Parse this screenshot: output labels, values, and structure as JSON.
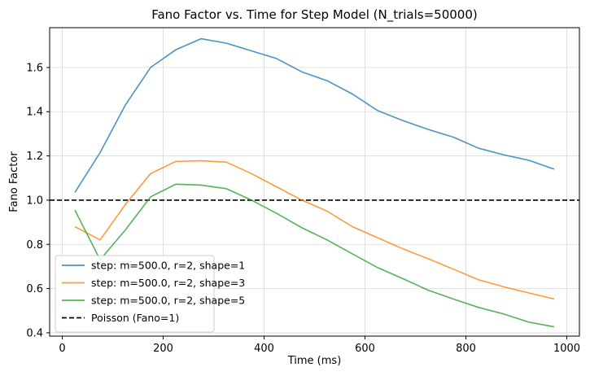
{
  "chart_data": {
    "type": "line",
    "title": "Fano Factor vs. Time for Step Model (N_trials=50000)",
    "xlabel": "Time (ms)",
    "ylabel": "Fano Factor",
    "xlim": [
      -25,
      1025
    ],
    "ylim": [
      0.385,
      1.78
    ],
    "xticks": [
      0,
      200,
      400,
      600,
      800,
      1000
    ],
    "yticks": [
      0.4,
      0.6,
      0.8,
      1.0,
      1.2,
      1.4,
      1.6
    ],
    "xtick_labels": [
      "0",
      "200",
      "400",
      "600",
      "800",
      "1000"
    ],
    "ytick_labels": [
      "0.4",
      "0.6",
      "0.8",
      "1.0",
      "1.2",
      "1.4",
      "1.6"
    ],
    "grid": true,
    "legend_position": "lower-left",
    "x": [
      25,
      75,
      125,
      175,
      225,
      275,
      325,
      375,
      425,
      475,
      525,
      575,
      625,
      675,
      725,
      775,
      825,
      875,
      925,
      975
    ],
    "series": [
      {
        "name": "step: m=500.0, r=2, shape=1",
        "color": "#1f77b4",
        "style": "solid",
        "values": [
          1.035,
          1.215,
          1.43,
          1.6,
          1.68,
          1.73,
          1.71,
          1.675,
          1.64,
          1.58,
          1.54,
          1.48,
          1.405,
          1.36,
          1.32,
          1.285,
          1.235,
          1.205,
          1.18,
          1.14
        ]
      },
      {
        "name": "step: m=500.0, r=2, shape=3",
        "color": "#ff7f0e",
        "style": "solid",
        "values": [
          0.88,
          0.82,
          0.98,
          1.12,
          1.175,
          1.178,
          1.172,
          1.12,
          1.06,
          1.0,
          0.95,
          0.88,
          0.83,
          0.78,
          0.735,
          0.688,
          0.64,
          0.608,
          0.58,
          0.553
        ]
      },
      {
        "name": "step: m=500.0, r=2, shape=5",
        "color": "#2ca02c",
        "style": "solid",
        "values": [
          0.955,
          0.73,
          0.865,
          1.015,
          1.072,
          1.068,
          1.052,
          1.0,
          0.94,
          0.875,
          0.82,
          0.757,
          0.695,
          0.645,
          0.593,
          0.553,
          0.515,
          0.485,
          0.448,
          0.427
        ]
      }
    ],
    "hlines": [
      {
        "name": "Poisson (Fano=1)",
        "y": 1.0,
        "color": "#000000",
        "style": "dashed"
      }
    ]
  }
}
